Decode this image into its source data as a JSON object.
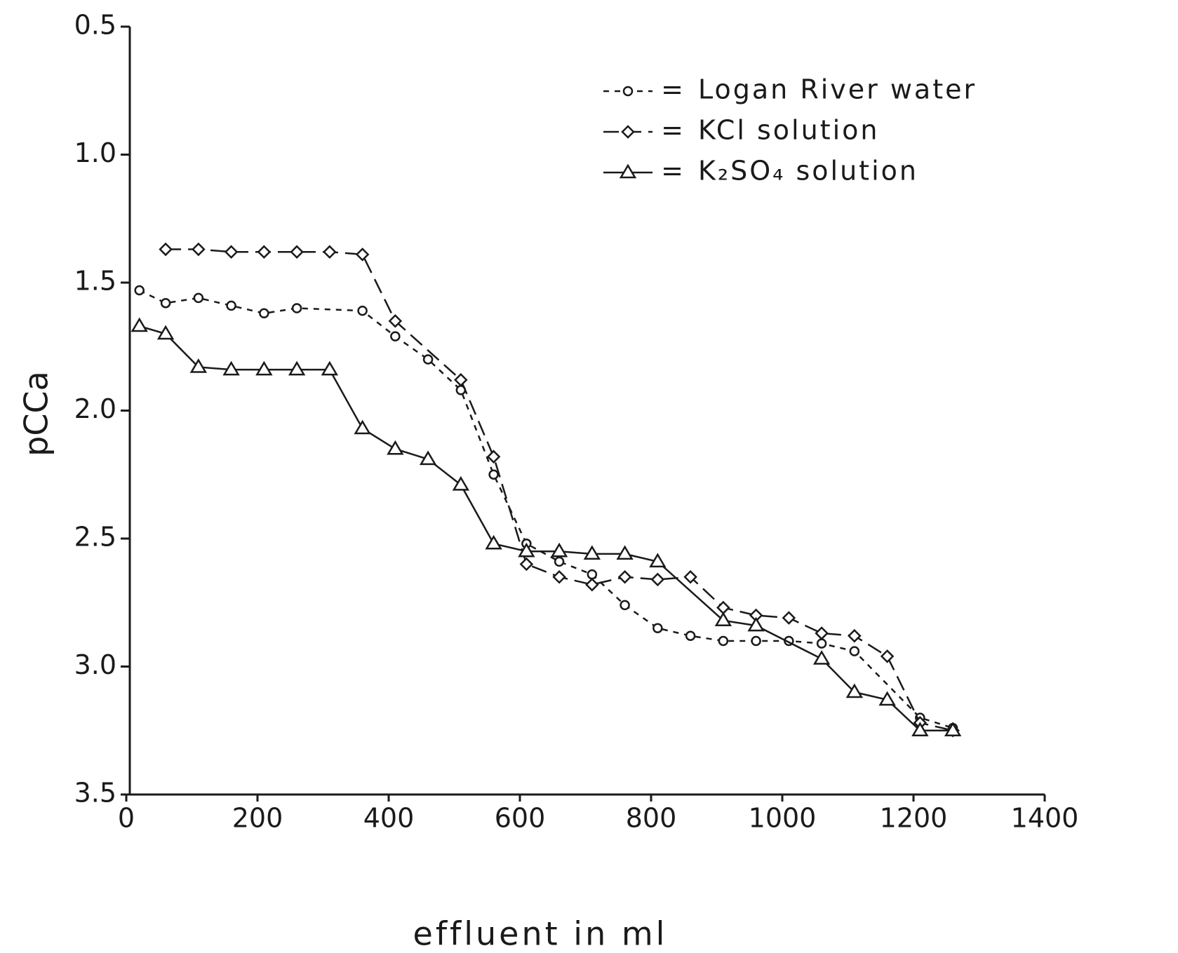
{
  "chart_data": {
    "type": "line",
    "x_label": "effluent in ml",
    "y_label": "pCCa",
    "y_inverted": true,
    "xlim": [
      0,
      1400
    ],
    "xticks": [
      0,
      200,
      400,
      600,
      800,
      1000,
      1200,
      1400
    ],
    "ylim": [
      0.5,
      3.5
    ],
    "yticks": [
      0.5,
      {
        "value": 1,
        "label": "1.0"
      },
      1.5,
      {
        "value": 2,
        "label": "2.0"
      },
      2.5,
      {
        "value": 3,
        "label": "3.0"
      },
      3.5
    ],
    "series": [
      {
        "name": "Logan River water",
        "color": "#1a1a1a",
        "marker": "circle",
        "dash": "8 8",
        "x": [
          20,
          60,
          110,
          160,
          210,
          260,
          360,
          410,
          460,
          510,
          560,
          610,
          660,
          710,
          760,
          810,
          860,
          910,
          960,
          1010,
          1060,
          1110,
          1210,
          1260
        ],
        "values": [
          1.53,
          1.58,
          1.56,
          1.59,
          1.62,
          1.6,
          1.61,
          1.71,
          1.8,
          1.92,
          2.25,
          2.52,
          2.59,
          2.64,
          2.76,
          2.85,
          2.88,
          2.9,
          2.9,
          2.9,
          2.91,
          2.94,
          3.2,
          3.24
        ]
      },
      {
        "name": "KCl solution",
        "color": "#1a1a1a",
        "marker": "diamond",
        "dash": "22 10",
        "x": [
          60,
          110,
          160,
          210,
          260,
          310,
          360,
          410,
          510,
          560,
          610,
          660,
          710,
          760,
          810,
          860,
          910,
          960,
          1010,
          1060,
          1110,
          1160,
          1210,
          1260
        ],
        "values": [
          1.37,
          1.37,
          1.38,
          1.38,
          1.38,
          1.38,
          1.39,
          1.65,
          1.88,
          2.18,
          2.6,
          2.65,
          2.68,
          2.65,
          2.66,
          2.65,
          2.77,
          2.8,
          2.81,
          2.87,
          2.88,
          2.96,
          3.22,
          3.25
        ]
      },
      {
        "name": "K₂SO₄ solution",
        "color": "#1a1a1a",
        "marker": "triangle",
        "dash": "none",
        "x": [
          20,
          60,
          110,
          160,
          210,
          260,
          310,
          360,
          410,
          460,
          510,
          560,
          610,
          660,
          710,
          760,
          810,
          910,
          960,
          1060,
          1110,
          1160,
          1210,
          1260
        ],
        "values": [
          1.67,
          1.7,
          1.83,
          1.84,
          1.84,
          1.84,
          1.84,
          2.07,
          2.15,
          2.19,
          2.29,
          2.52,
          2.55,
          2.55,
          2.56,
          2.56,
          2.59,
          2.82,
          2.84,
          2.97,
          3.1,
          3.13,
          3.25,
          3.25
        ]
      }
    ]
  }
}
